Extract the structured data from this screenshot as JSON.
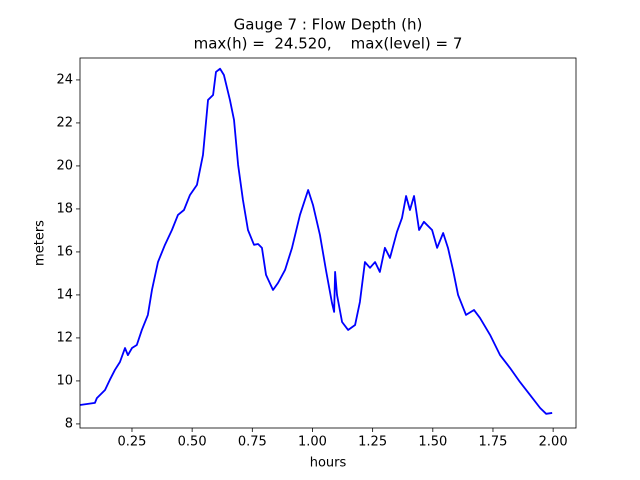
{
  "chart_data": {
    "type": "line",
    "title": [
      "Gauge 7 : Flow Depth (h)",
      "max(h) =  24.520,    max(level) = 7"
    ],
    "x_label": "hours",
    "y_label": "meters",
    "x": [
      0.034,
      0.096,
      0.104,
      0.138,
      0.158,
      0.179,
      0.2,
      0.221,
      0.233,
      0.25,
      0.27,
      0.291,
      0.316,
      0.333,
      0.358,
      0.387,
      0.416,
      0.441,
      0.466,
      0.491,
      0.52,
      0.545,
      0.566,
      0.587,
      0.599,
      0.616,
      0.632,
      0.657,
      0.674,
      0.691,
      0.711,
      0.732,
      0.757,
      0.774,
      0.79,
      0.807,
      0.836,
      0.857,
      0.886,
      0.915,
      0.948,
      0.982,
      1.002,
      1.031,
      1.056,
      1.081,
      1.09,
      1.094,
      1.102,
      1.123,
      1.148,
      1.177,
      1.197,
      1.218,
      1.239,
      1.26,
      1.28,
      1.301,
      1.322,
      1.351,
      1.372,
      1.389,
      1.405,
      1.422,
      1.443,
      1.463,
      1.497,
      1.518,
      1.543,
      1.563,
      1.584,
      1.605,
      1.638,
      1.671,
      1.696,
      1.738,
      1.779,
      1.821,
      1.862,
      1.904,
      1.946,
      1.971,
      1.996
    ],
    "series": [
      {
        "color": "#0000ff",
        "values": [
          8.88,
          8.98,
          9.2,
          9.58,
          10.05,
          10.51,
          10.88,
          11.53,
          11.2,
          11.53,
          11.67,
          12.37,
          13.07,
          14.23,
          15.53,
          16.33,
          17.02,
          17.72,
          17.95,
          18.65,
          19.12,
          20.51,
          23.07,
          23.3,
          24.37,
          24.52,
          24.23,
          23.07,
          22.14,
          20.05,
          18.42,
          17.02,
          16.33,
          16.37,
          16.19,
          14.93,
          14.23,
          14.56,
          15.16,
          16.19,
          17.72,
          18.88,
          18.19,
          16.79,
          15.16,
          13.63,
          13.21,
          15.07,
          14.0,
          12.74,
          12.37,
          12.6,
          13.67,
          15.53,
          15.26,
          15.53,
          15.07,
          16.19,
          15.72,
          16.93,
          17.58,
          18.6,
          17.95,
          18.6,
          17.02,
          17.4,
          17.02,
          16.19,
          16.88,
          16.19,
          15.16,
          14.0,
          13.07,
          13.3,
          12.93,
          12.14,
          11.21,
          10.6,
          9.95,
          9.35,
          8.74,
          8.47,
          8.51
        ]
      }
    ],
    "xlim": [
      0.034,
      2.095
    ],
    "ylim": [
      7.81,
      25.02
    ],
    "xticks": [
      0.25,
      {
        "value": 0.5,
        "label": "0.50"
      },
      0.75,
      {
        "value": 1,
        "label": "1.00"
      },
      1.25,
      {
        "value": 1.5,
        "label": "1.50"
      },
      1.75,
      {
        "value": 2,
        "label": "2.00"
      }
    ],
    "yticks": [
      8,
      10,
      12,
      14,
      16,
      18,
      20,
      22,
      24
    ]
  }
}
